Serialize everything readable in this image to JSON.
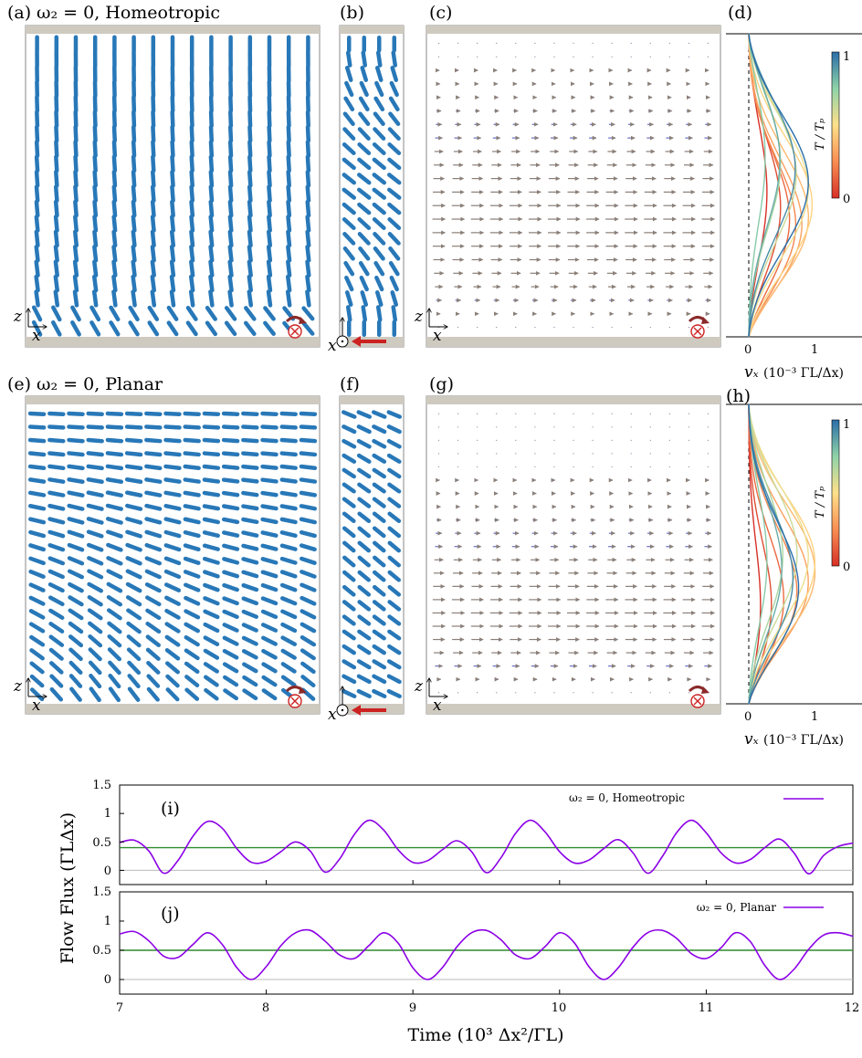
{
  "panels": {
    "a": {
      "label": "(a)",
      "title": "ω₂ = 0, Homeotropic"
    },
    "b": {
      "label": "(b)"
    },
    "c": {
      "label": "(c)"
    },
    "d": {
      "label": "(d)"
    },
    "e": {
      "label": "(e)",
      "title": "ω₂ = 0, Planar"
    },
    "f": {
      "label": "(f)"
    },
    "g": {
      "label": "(g)"
    },
    "h": {
      "label": "(h)"
    },
    "i": {
      "label": "(i)"
    },
    "j": {
      "label": "(j)"
    }
  },
  "axes_glyphs": {
    "z": "z",
    "x": "x"
  },
  "profile_plots": {
    "xlabel_var": "vₓ",
    "xlabel_unit": "(10⁻³ ΓL/Δx)",
    "ticks": [
      "0",
      "1"
    ],
    "colorbar": {
      "label": "T / Tₚ",
      "max": "1",
      "min": "0"
    }
  },
  "flux_plot": {
    "ylabel": "Flow Flux (ΓLΔx)",
    "xlabel": "Time (10³ Δx²/ΓL)",
    "xticks": [
      "7",
      "8",
      "9",
      "10",
      "11",
      "12"
    ],
    "yticks": [
      "1.5",
      "1",
      "0.5",
      "0"
    ],
    "legend_i": "ω₂ = 0, Homeotropic",
    "legend_j": "ω₂ = 0, Planar"
  },
  "colors": {
    "director": "#2878b8",
    "wall": "#cfcac0",
    "flux_curve": "#8b00e6",
    "mean_line": "#2e8b2e",
    "shear_arrow": "#cc2222"
  },
  "chart_data": [
    {
      "type": "line",
      "id": "i",
      "legend": "ω₂ = 0, Homeotropic",
      "xlim": [
        7,
        12
      ],
      "ylim": [
        -0.25,
        1.5
      ],
      "mean": 0.4,
      "x": [
        7.0,
        7.1,
        7.2,
        7.3,
        7.4,
        7.5,
        7.6,
        7.7,
        7.8,
        7.9,
        8.0,
        8.1,
        8.2,
        8.3,
        8.4,
        8.5,
        8.6,
        8.7,
        8.8,
        8.9,
        9.0,
        9.1,
        9.2,
        9.3,
        9.4,
        9.5,
        9.6,
        9.7,
        9.8,
        9.9,
        10.0,
        10.1,
        10.2,
        10.3,
        10.4,
        10.5,
        10.6,
        10.7,
        10.8,
        10.9,
        11.0,
        11.1,
        11.2,
        11.3,
        11.4,
        11.5,
        11.6,
        11.7,
        11.8,
        11.9,
        12.0
      ],
      "y": [
        0.49,
        0.53,
        0.34,
        -0.05,
        0.18,
        0.6,
        0.86,
        0.74,
        0.38,
        0.14,
        0.16,
        0.33,
        0.5,
        0.34,
        -0.03,
        0.2,
        0.63,
        0.88,
        0.71,
        0.36,
        0.14,
        0.17,
        0.36,
        0.52,
        0.33,
        -0.04,
        0.22,
        0.65,
        0.88,
        0.68,
        0.33,
        0.13,
        0.18,
        0.38,
        0.54,
        0.31,
        -0.05,
        0.24,
        0.67,
        0.88,
        0.66,
        0.31,
        0.13,
        0.19,
        0.4,
        0.55,
        0.3,
        -0.06,
        0.26,
        0.42,
        0.48
      ]
    },
    {
      "type": "line",
      "id": "j",
      "legend": "ω₂ = 0, Planar",
      "xlim": [
        7,
        12
      ],
      "ylim": [
        -0.25,
        1.5
      ],
      "mean": 0.5,
      "x": [
        7.0,
        7.1,
        7.2,
        7.3,
        7.4,
        7.5,
        7.6,
        7.7,
        7.8,
        7.9,
        8.0,
        8.1,
        8.2,
        8.3,
        8.4,
        8.5,
        8.6,
        8.7,
        8.8,
        8.9,
        9.0,
        9.1,
        9.2,
        9.3,
        9.4,
        9.5,
        9.6,
        9.7,
        9.8,
        9.9,
        10.0,
        10.1,
        10.2,
        10.3,
        10.4,
        10.5,
        10.6,
        10.7,
        10.8,
        10.9,
        11.0,
        11.1,
        11.2,
        11.3,
        11.4,
        11.5,
        11.6,
        11.7,
        11.8,
        11.9,
        12.0
      ],
      "y": [
        0.78,
        0.82,
        0.66,
        0.4,
        0.38,
        0.6,
        0.8,
        0.6,
        0.2,
        0.0,
        0.22,
        0.58,
        0.8,
        0.84,
        0.66,
        0.42,
        0.36,
        0.58,
        0.8,
        0.62,
        0.2,
        0.0,
        0.2,
        0.56,
        0.8,
        0.84,
        0.68,
        0.42,
        0.36,
        0.56,
        0.8,
        0.63,
        0.22,
        0.0,
        0.2,
        0.55,
        0.8,
        0.84,
        0.7,
        0.44,
        0.36,
        0.54,
        0.8,
        0.65,
        0.24,
        0.0,
        0.18,
        0.52,
        0.76,
        0.8,
        0.74
      ]
    }
  ]
}
